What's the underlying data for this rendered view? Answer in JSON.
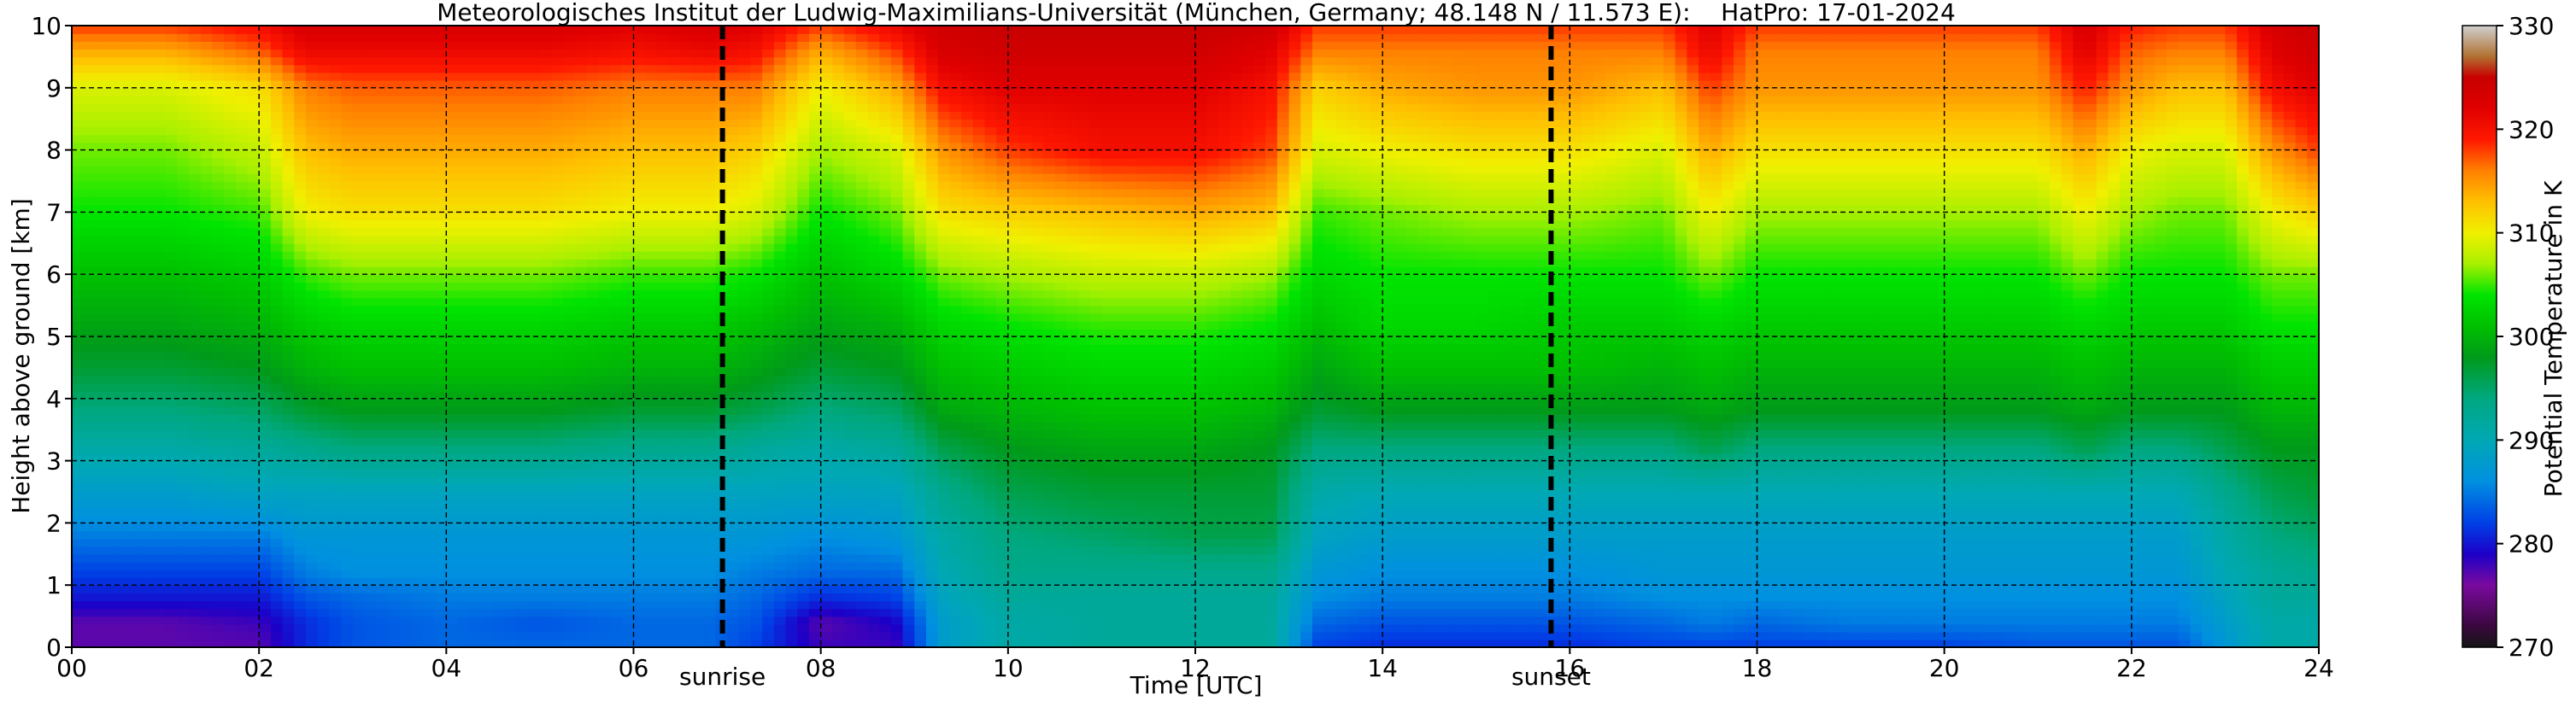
{
  "chart_data": {
    "type": "heatmap",
    "title": "Meteorologisches Institut der Ludwig-Maximilians-Universität (München, Germany; 48.148 N / 11.573 E):    HatPro: 17-01-2024",
    "xlabel": "Time [UTC]",
    "ylabel": "Height above ground [km]",
    "xlim": [
      0,
      24
    ],
    "ylim": [
      0,
      10
    ],
    "x_ticks": [
      0,
      2,
      4,
      6,
      8,
      10,
      12,
      14,
      16,
      18,
      20,
      22,
      24
    ],
    "x_tick_labels": [
      "00",
      "02",
      "04",
      "06",
      "08",
      "10",
      "12",
      "14",
      "16",
      "18",
      "20",
      "22",
      "24"
    ],
    "y_ticks": [
      0,
      1,
      2,
      3,
      4,
      5,
      6,
      7,
      8,
      9,
      10
    ],
    "y_tick_labels": [
      "0",
      "1",
      "2",
      "3",
      "4",
      "5",
      "6",
      "7",
      "8",
      "9",
      "10"
    ],
    "grid": true,
    "colorbar": {
      "label": "Potential Temperature in K",
      "range": [
        270,
        330
      ],
      "ticks": [
        270,
        280,
        290,
        300,
        310,
        320,
        330
      ],
      "colors": [
        {
          "value": 270,
          "color": "#141414"
        },
        {
          "value": 272,
          "color": "#3a083e"
        },
        {
          "value": 276,
          "color": "#7a0a9e"
        },
        {
          "value": 279,
          "color": "#1c00c8"
        },
        {
          "value": 282,
          "color": "#0040e6"
        },
        {
          "value": 286,
          "color": "#0090e0"
        },
        {
          "value": 290,
          "color": "#00a8b4"
        },
        {
          "value": 294,
          "color": "#00a880"
        },
        {
          "value": 298,
          "color": "#009a1a"
        },
        {
          "value": 301,
          "color": "#00c000"
        },
        {
          "value": 304,
          "color": "#00e400"
        },
        {
          "value": 307,
          "color": "#a8f000"
        },
        {
          "value": 310,
          "color": "#f0f000"
        },
        {
          "value": 313,
          "color": "#ffc000"
        },
        {
          "value": 316,
          "color": "#ff8000"
        },
        {
          "value": 319,
          "color": "#ff1800"
        },
        {
          "value": 322,
          "color": "#e00000"
        },
        {
          "value": 325,
          "color": "#c80000"
        },
        {
          "value": 327,
          "color": "#b07030"
        },
        {
          "value": 330,
          "color": "#d0d0d0"
        }
      ]
    },
    "field": {
      "times": [
        0,
        1,
        2,
        2.5,
        3,
        4,
        5,
        6,
        6.8,
        7.3,
        8,
        8.8,
        9.3,
        10,
        11,
        12,
        12.8,
        13.3,
        14,
        15,
        16,
        17,
        17.5,
        18,
        19,
        20,
        21,
        21.5,
        22,
        22.5,
        23,
        23.5,
        24
      ],
      "rows": [
        {
          "height": 0.0,
          "values": [
            277,
            277,
            277,
            281,
            283,
            284,
            284,
            284,
            284,
            282,
            278,
            278,
            288,
            291,
            292,
            292,
            292,
            282,
            281,
            281,
            281,
            282,
            282,
            282,
            282,
            282,
            283,
            283,
            283,
            283,
            287,
            291,
            291
          ]
        },
        {
          "height": 0.4,
          "values": [
            277,
            277,
            278,
            281,
            283,
            284,
            283,
            284,
            284,
            283,
            277,
            279,
            288,
            291,
            292,
            292,
            292,
            284,
            283,
            283,
            283,
            284,
            285,
            284,
            285,
            285,
            285,
            285,
            285,
            285,
            288,
            291,
            291
          ]
        },
        {
          "height": 0.8,
          "values": [
            280,
            280,
            280,
            283,
            284,
            285,
            285,
            285,
            285,
            284,
            281,
            282,
            289,
            292,
            292,
            292,
            292,
            286,
            285,
            285,
            285,
            286,
            286,
            286,
            286,
            286,
            286,
            286,
            286,
            286,
            289,
            292,
            292
          ]
        },
        {
          "height": 1.2,
          "values": [
            282,
            282,
            282,
            285,
            286,
            286,
            286,
            286,
            286,
            285,
            284,
            284,
            290,
            293,
            293,
            293,
            293,
            287,
            286,
            286,
            286,
            287,
            287,
            287,
            287,
            287,
            287,
            287,
            287,
            287,
            290,
            292,
            293
          ]
        },
        {
          "height": 1.8,
          "values": [
            285,
            285,
            285,
            287,
            287,
            287,
            287,
            287,
            287,
            287,
            286,
            287,
            291,
            294,
            295,
            296,
            296,
            289,
            288,
            288,
            288,
            288,
            288,
            288,
            288,
            288,
            288,
            288,
            288,
            288,
            291,
            294,
            295
          ]
        },
        {
          "height": 2.5,
          "values": [
            288,
            288,
            289,
            289,
            289,
            289,
            289,
            289,
            289,
            289,
            289,
            289,
            293,
            296,
            297,
            297,
            297,
            291,
            290,
            290,
            290,
            290,
            290,
            290,
            290,
            290,
            290,
            290,
            290,
            290,
            293,
            296,
            297
          ]
        },
        {
          "height": 3.2,
          "values": [
            291,
            291,
            292,
            293,
            294,
            294,
            294,
            293,
            293,
            292,
            291,
            292,
            296,
            298,
            299,
            299,
            298,
            294,
            294,
            294,
            294,
            294,
            296,
            294,
            294,
            294,
            294,
            296,
            294,
            294,
            296,
            298,
            298
          ]
        },
        {
          "height": 3.8,
          "values": [
            294,
            294,
            295,
            297,
            298,
            298,
            298,
            297,
            297,
            296,
            294,
            295,
            299,
            300,
            301,
            301,
            300,
            297,
            298,
            298,
            298,
            298,
            299,
            298,
            298,
            298,
            298,
            299,
            298,
            298,
            298,
            300,
            300
          ]
        },
        {
          "height": 4.5,
          "values": [
            297,
            297,
            298,
            300,
            301,
            301,
            301,
            300,
            300,
            299,
            297,
            298,
            301,
            302,
            303,
            303,
            302,
            299,
            301,
            301,
            301,
            300,
            301,
            300,
            300,
            300,
            300,
            301,
            300,
            300,
            300,
            302,
            302
          ]
        },
        {
          "height": 5.2,
          "values": [
            299,
            299,
            300,
            302,
            303,
            303,
            303,
            302,
            302,
            301,
            299,
            300,
            303,
            304,
            305,
            305,
            304,
            301,
            303,
            303,
            302,
            302,
            303,
            302,
            302,
            302,
            302,
            303,
            302,
            302,
            302,
            304,
            304
          ]
        },
        {
          "height": 6.0,
          "values": [
            301,
            301,
            302,
            305,
            306,
            306,
            306,
            305,
            305,
            304,
            301,
            303,
            306,
            307,
            308,
            308,
            307,
            303,
            304,
            304,
            304,
            304,
            306,
            304,
            304,
            304,
            304,
            306,
            304,
            304,
            304,
            306,
            306
          ]
        },
        {
          "height": 7.0,
          "values": [
            304,
            304,
            305,
            310,
            311,
            311,
            311,
            310,
            310,
            309,
            304,
            306,
            311,
            312,
            313,
            314,
            313,
            305,
            306,
            307,
            307,
            306,
            310,
            307,
            307,
            307,
            307,
            310,
            307,
            306,
            306,
            310,
            312
          ]
        },
        {
          "height": 8.0,
          "values": [
            306,
            306,
            308,
            313,
            314,
            314,
            314,
            313,
            313,
            312,
            307,
            309,
            315,
            318,
            320,
            320,
            318,
            309,
            310,
            311,
            311,
            309,
            314,
            311,
            311,
            311,
            311,
            314,
            310,
            309,
            309,
            315,
            318
          ]
        },
        {
          "height": 9.0,
          "values": [
            309,
            309,
            311,
            316,
            317,
            317,
            317,
            316,
            316,
            316,
            310,
            314,
            320,
            322,
            322,
            322,
            320,
            312,
            314,
            315,
            315,
            313,
            318,
            315,
            315,
            315,
            315,
            319,
            315,
            313,
            313,
            320,
            322
          ]
        },
        {
          "height": 9.6,
          "values": [
            314,
            314,
            317,
            321,
            321,
            321,
            321,
            320,
            321,
            320,
            314,
            318,
            323,
            324,
            324,
            324,
            322,
            316,
            316,
            316,
            316,
            316,
            321,
            316,
            316,
            316,
            316,
            322,
            317,
            316,
            316,
            322,
            324
          ]
        },
        {
          "height": 10.0,
          "values": [
            318,
            318,
            320,
            323,
            323,
            323,
            323,
            322,
            323,
            322,
            318,
            321,
            324,
            325,
            325,
            325,
            324,
            318,
            318,
            318,
            318,
            318,
            322,
            318,
            318,
            318,
            318,
            323,
            319,
            318,
            318,
            323,
            325
          ]
        }
      ]
    },
    "events": [
      {
        "label": "sunrise",
        "time": 6.95
      },
      {
        "label": "sunset",
        "time": 15.8
      }
    ]
  }
}
